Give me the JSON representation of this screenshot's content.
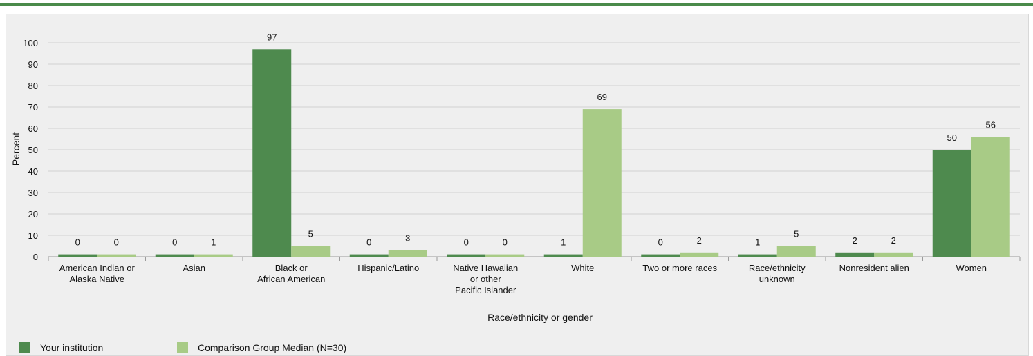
{
  "chart_data": {
    "type": "bar",
    "ylabel": "Percent",
    "xlabel": "Race/ethnicity or gender",
    "ylim": [
      0,
      100
    ],
    "yticks": [
      0,
      10,
      20,
      30,
      40,
      50,
      60,
      70,
      80,
      90,
      100
    ],
    "grid": true,
    "legend": "bottom-left",
    "categories": [
      [
        "American Indian or",
        "Alaska Native"
      ],
      [
        "Asian"
      ],
      [
        "Black or",
        "African American"
      ],
      [
        "Hispanic/Latino"
      ],
      [
        "Native Hawaiian",
        "or other",
        "Pacific Islander"
      ],
      [
        "White"
      ],
      [
        "Two or more races"
      ],
      [
        "Race/ethnicity",
        "unknown"
      ],
      [
        "Nonresident alien"
      ],
      [
        "Women"
      ]
    ],
    "series": [
      {
        "name": "Your institution",
        "color": "#4e8a4e",
        "values": [
          0,
          0,
          97,
          0,
          0,
          1,
          0,
          1,
          2,
          50
        ],
        "labels": [
          "0",
          "0",
          "97",
          "0",
          "0",
          "1",
          "0",
          "1",
          "2",
          "50"
        ]
      },
      {
        "name": "Comparison Group Median (N=30)",
        "color": "#a8cb86",
        "values": [
          0,
          1,
          5,
          3,
          0,
          69,
          2,
          5,
          2,
          56
        ],
        "labels": [
          "0",
          "1",
          "5",
          "3",
          "0",
          "69",
          "2",
          "5",
          "2",
          "56"
        ]
      }
    ]
  }
}
